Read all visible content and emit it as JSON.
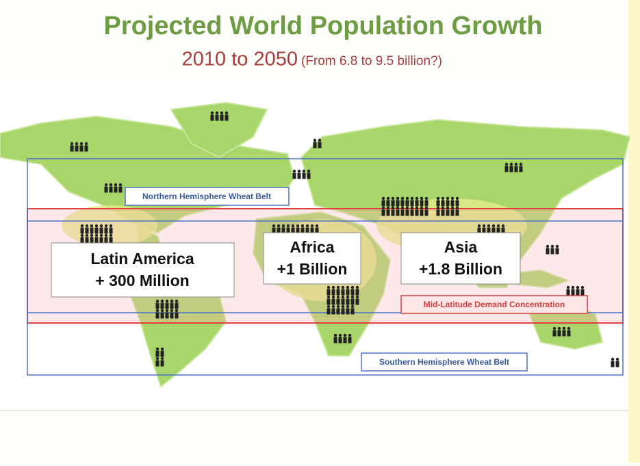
{
  "header": {
    "title": "Projected World Population Growth",
    "subtitle_main": "2010 to 2050",
    "subtitle_note": "(From 6.8 to 9.5 billion?)"
  },
  "belts": {
    "north": "Northern Hemisphere Wheat Belt",
    "middle": "Mid-Latitude Demand Concentration",
    "south": "Southern Hemisphere Wheat Belt"
  },
  "regions": [
    {
      "name": "Latin America",
      "growth": "+ 300 Million"
    },
    {
      "name": "Africa",
      "growth": "+1 Billion"
    },
    {
      "name": "Asia",
      "growth": "+1.8 Billion"
    }
  ]
}
